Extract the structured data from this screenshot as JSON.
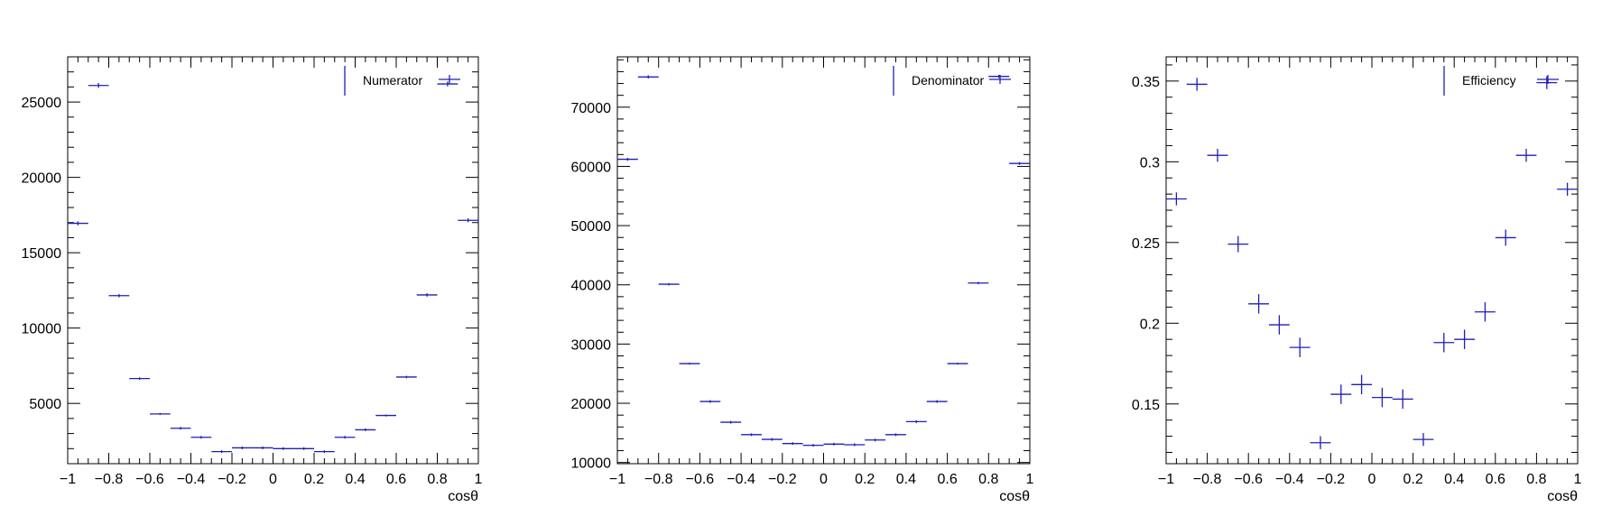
{
  "chart_data": [
    {
      "type": "scatter",
      "style": "error-bar histogram",
      "xlabel": "cosθ",
      "ylabel": "",
      "title": "",
      "xlim": [
        -1,
        1
      ],
      "ylim": [
        1000,
        28000
      ],
      "xticks": [
        "−1",
        "−0.8",
        "−0.6",
        "−0.4",
        "−0.2",
        "0",
        "0.2",
        "0.4",
        "0.6",
        "0.8",
        "1"
      ],
      "yticks": [
        5000,
        10000,
        15000,
        20000,
        25000
      ],
      "ytick_labels": [
        "5000",
        "10000",
        "15000",
        "20000",
        "25000"
      ],
      "legend": {
        "label": "Numerator",
        "placement": "top-right"
      },
      "color": "#1f1fb4",
      "bin_width": 0.1,
      "x": [
        -0.95,
        -0.85,
        -0.75,
        -0.65,
        -0.55,
        -0.45,
        -0.35,
        -0.25,
        -0.15,
        -0.05,
        0.05,
        0.15,
        0.25,
        0.35,
        0.45,
        0.55,
        0.65,
        0.75,
        0.85,
        0.95
      ],
      "values": [
        16950,
        26100,
        12150,
        6650,
        4300,
        3350,
        2750,
        1800,
        2050,
        2050,
        2000,
        2000,
        1800,
        2750,
        3250,
        4200,
        6750,
        12200,
        26200,
        17150
      ],
      "yerr": [
        130,
        160,
        110,
        80,
        65,
        58,
        52,
        42,
        45,
        45,
        45,
        45,
        42,
        52,
        57,
        65,
        82,
        110,
        162,
        131
      ]
    },
    {
      "type": "scatter",
      "style": "error-bar histogram",
      "xlabel": "cosθ",
      "ylabel": "",
      "title": "",
      "xlim": [
        -1,
        1
      ],
      "ylim": [
        9800,
        78500
      ],
      "xticks": [
        "−1",
        "−0.8",
        "−0.6",
        "−0.4",
        "−0.2",
        "0",
        "0.2",
        "0.4",
        "0.6",
        "0.8",
        "1"
      ],
      "yticks": [
        10000,
        20000,
        30000,
        40000,
        50000,
        60000,
        70000
      ],
      "ytick_labels": [
        "10000",
        "20000",
        "30000",
        "40000",
        "50000",
        "60000",
        "70000"
      ],
      "legend": {
        "label": "Denominator",
        "placement": "top-right"
      },
      "color": "#1f1fb4",
      "bin_width": 0.1,
      "x": [
        -0.95,
        -0.85,
        -0.75,
        -0.65,
        -0.55,
        -0.45,
        -0.35,
        -0.25,
        -0.15,
        -0.05,
        0.05,
        0.15,
        0.25,
        0.35,
        0.45,
        0.55,
        0.65,
        0.75,
        0.85,
        0.95
      ],
      "values": [
        61200,
        75100,
        40100,
        26700,
        20300,
        16800,
        14700,
        13900,
        13200,
        12900,
        13100,
        13000,
        13800,
        14700,
        16900,
        20300,
        26700,
        40300,
        75200,
        60500
      ],
      "yerr": [
        247,
        274,
        200,
        163,
        142,
        130,
        121,
        118,
        115,
        114,
        114,
        114,
        117,
        121,
        130,
        142,
        163,
        201,
        274,
        246
      ]
    },
    {
      "type": "scatter",
      "style": "error-bar histogram",
      "xlabel": "cosθ",
      "ylabel": "",
      "title": "",
      "xlim": [
        -1,
        1
      ],
      "ylim": [
        0.113,
        0.365
      ],
      "xticks": [
        "−1",
        "−0.8",
        "−0.6",
        "−0.4",
        "−0.2",
        "0",
        "0.2",
        "0.4",
        "0.6",
        "0.8",
        "1"
      ],
      "yticks": [
        0.15,
        0.2,
        0.25,
        0.3,
        0.35
      ],
      "ytick_labels": [
        "0.15",
        "0.2",
        "0.25",
        "0.3",
        "0.35"
      ],
      "legend": {
        "label": "Efficiency",
        "placement": "top-right"
      },
      "color": "#1f1fb4",
      "bin_width": 0.1,
      "x": [
        -0.95,
        -0.85,
        -0.75,
        -0.65,
        -0.55,
        -0.45,
        -0.35,
        -0.25,
        -0.15,
        -0.05,
        0.05,
        0.15,
        0.25,
        0.35,
        0.45,
        0.55,
        0.65,
        0.75,
        0.85,
        0.95
      ],
      "values": [
        0.277,
        0.348,
        0.304,
        0.249,
        0.212,
        0.199,
        0.185,
        0.126,
        0.156,
        0.162,
        0.154,
        0.153,
        0.128,
        0.188,
        0.19,
        0.207,
        0.253,
        0.304,
        0.349,
        0.283
      ],
      "yerr": [
        0.004,
        0.004,
        0.004,
        0.005,
        0.006,
        0.006,
        0.006,
        0.004,
        0.006,
        0.006,
        0.006,
        0.006,
        0.004,
        0.006,
        0.006,
        0.006,
        0.005,
        0.004,
        0.004,
        0.004
      ]
    }
  ]
}
